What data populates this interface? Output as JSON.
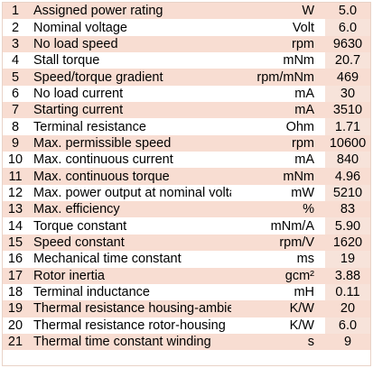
{
  "rows": [
    {
      "num": "1",
      "name": "Assigned power rating",
      "unit": "W",
      "value": "5.0"
    },
    {
      "num": "2",
      "name": "Nominal voltage",
      "unit": "Volt",
      "value": "6.0"
    },
    {
      "num": "3",
      "name": "No load speed",
      "unit": "rpm",
      "value": "9630"
    },
    {
      "num": "4",
      "name": "Stall torque",
      "unit": "mNm",
      "value": "20.7"
    },
    {
      "num": "5",
      "name": "Speed/torque gradient",
      "unit": "rpm/mNm",
      "value": "469"
    },
    {
      "num": "6",
      "name": "No load current",
      "unit": "mA",
      "value": "30"
    },
    {
      "num": "7",
      "name": "Starting current",
      "unit": "mA",
      "value": "3510"
    },
    {
      "num": "8",
      "name": "Terminal resistance",
      "unit": "Ohm",
      "value": "1.71"
    },
    {
      "num": "9",
      "name": "Max. permissible speed",
      "unit": "rpm",
      "value": "10600"
    },
    {
      "num": "10",
      "name": "Max. continuous current",
      "unit": "mA",
      "value": "840"
    },
    {
      "num": "11",
      "name": "Max. continuous torque",
      "unit": "mNm",
      "value": "4.96"
    },
    {
      "num": "12",
      "name": "Max. power output at nominal voltage",
      "unit": "mW",
      "value": "5210"
    },
    {
      "num": "13",
      "name": "Max. efficiency",
      "unit": "%",
      "value": "83"
    },
    {
      "num": "14",
      "name": "Torque constant",
      "unit": "mNm/A",
      "value": "5.90"
    },
    {
      "num": "15",
      "name": "Speed constant",
      "unit": "rpm/V",
      "value": "1620"
    },
    {
      "num": "16",
      "name": "Mechanical time constant",
      "unit": "ms",
      "value": "19"
    },
    {
      "num": "17",
      "name": "Rotor inertia",
      "unit": "gcm²",
      "value": "3.88"
    },
    {
      "num": "18",
      "name": "Terminal inductance",
      "unit": "mH",
      "value": "0.11"
    },
    {
      "num": "19",
      "name": "Thermal resistance housing-ambient",
      "unit": "K/W",
      "value": "20"
    },
    {
      "num": "20",
      "name": "Thermal resistance rotor-housing",
      "unit": "K/W",
      "value": "6.0"
    },
    {
      "num": "21",
      "name": "Thermal time constant winding",
      "unit": "s",
      "value": "9"
    }
  ],
  "colors": {
    "stripe": "#f8ddd2",
    "background": "#ffffff",
    "text": "#000000"
  }
}
